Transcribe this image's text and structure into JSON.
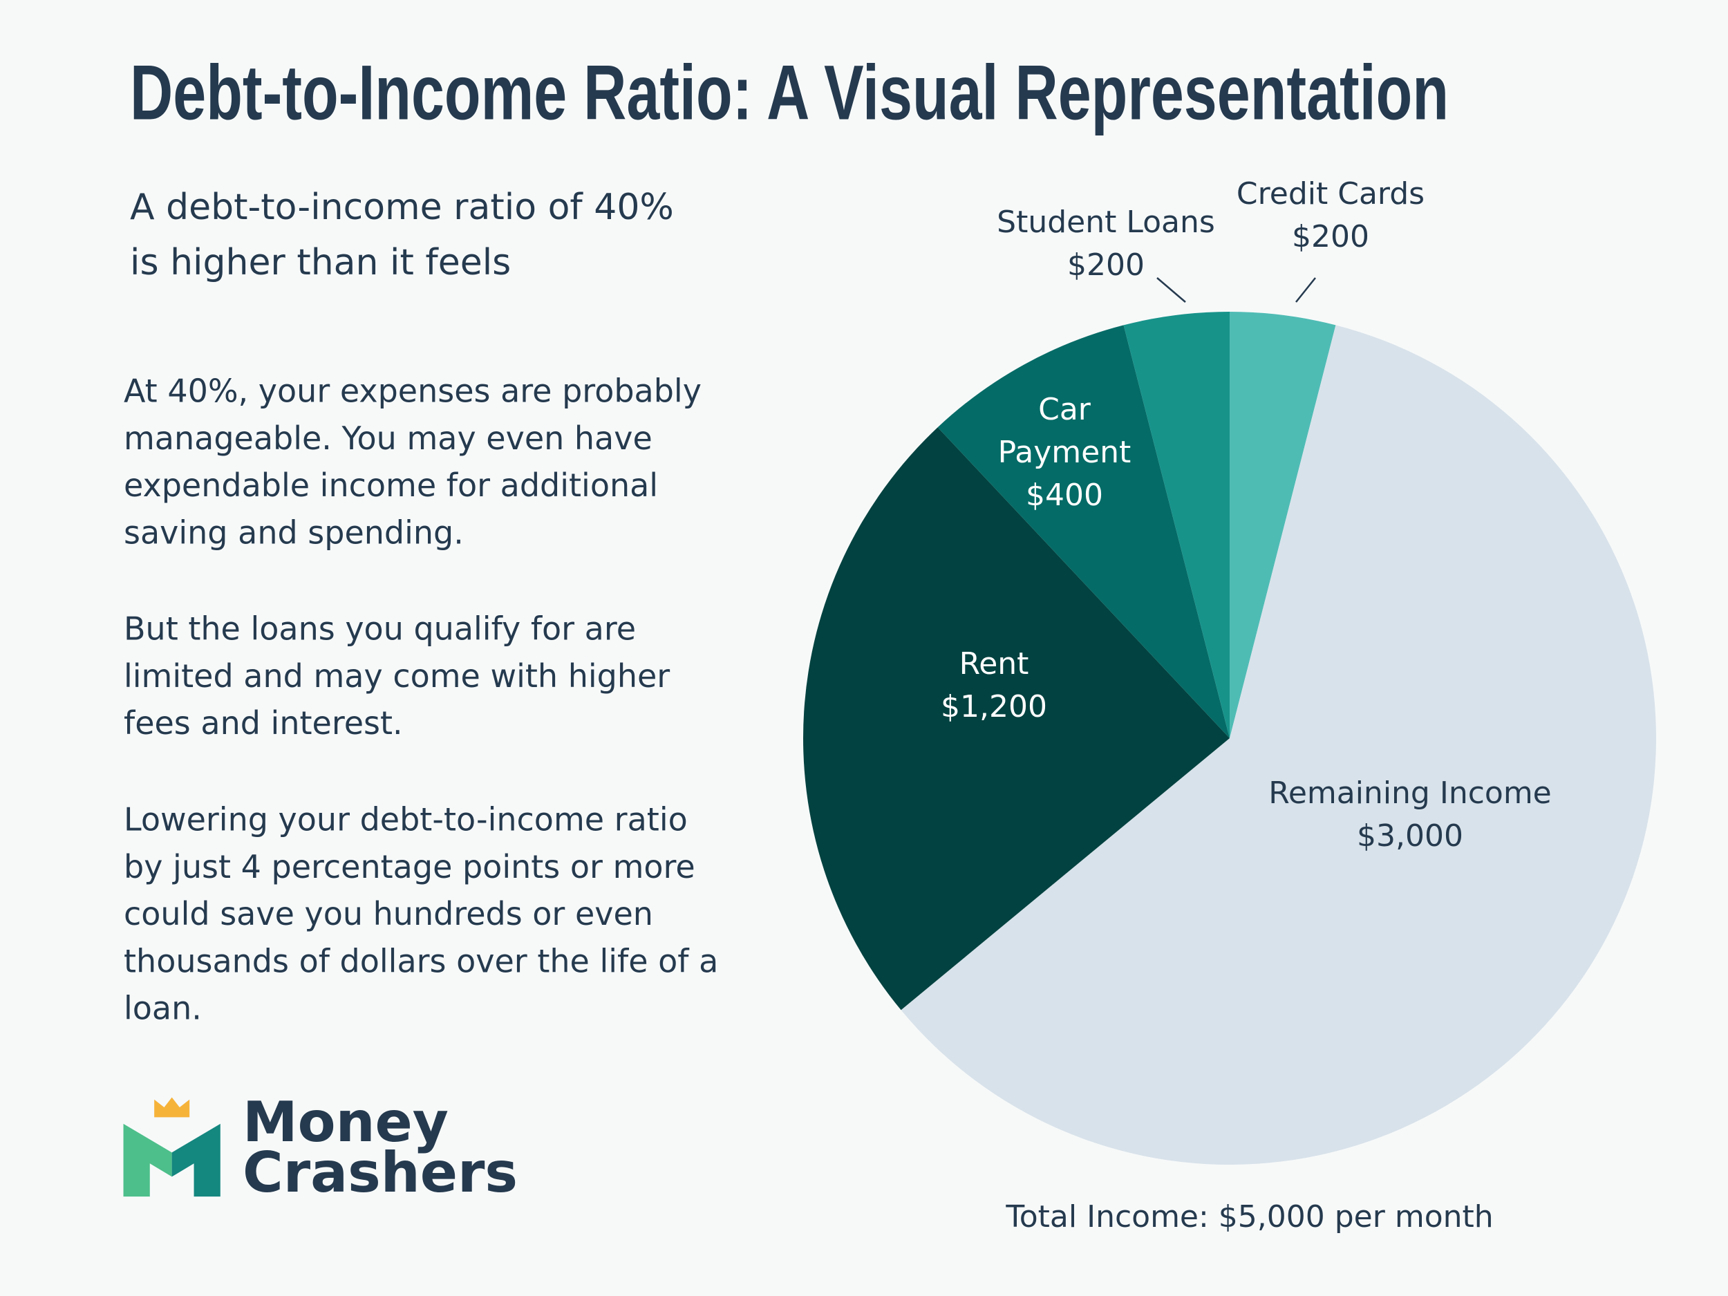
{
  "chart_data": {
    "type": "pie",
    "title": "Debt-to-Income Ratio: A Visual Representation",
    "subtitle": [
      "A debt-to-income ratio of 40%",
      "is higher than it feels"
    ],
    "paragraphs": [
      [
        "At 40%, your expenses are probably",
        "manageable. You may even have",
        "expendable income for additional",
        "saving and spending."
      ],
      [
        "But the loans you qualify for are",
        "limited and may come with higher",
        "fees and interest."
      ],
      [
        "Lowering your debt-to-income ratio",
        "by just 4 percentage points or more",
        "could save you hundreds or even",
        "thousands of dollars over the life of a",
        "loan."
      ]
    ],
    "categories": [
      "Credit Cards",
      "Remaining Income",
      "Rent",
      "Car Payment",
      "Student Loans"
    ],
    "values": [
      200,
      3000,
      1200,
      400,
      200
    ],
    "value_labels": [
      "$200",
      "$3,000",
      "$1,200",
      "$400",
      "$200"
    ],
    "colors": [
      "#4fbcb4",
      "#d8e2ea",
      "#024240",
      "#056b66",
      "#17938a"
    ],
    "note": "Total Income: $5,000 per month"
  },
  "logo": [
    "Money",
    "Crashers"
  ]
}
